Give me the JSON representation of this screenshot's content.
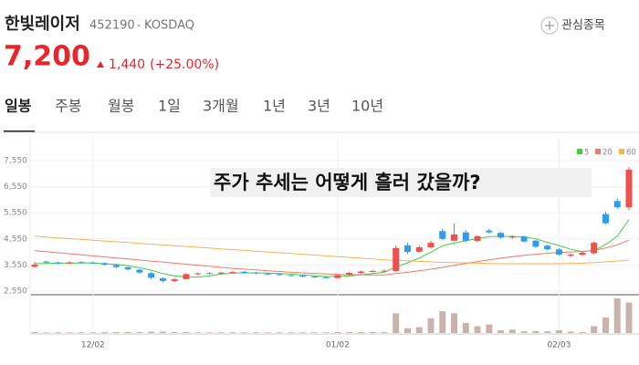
{
  "header": {
    "name": "한빛레이저",
    "code": "452190",
    "market": "KOSDAQ",
    "watch_button": "관심종목",
    "price": "7,200",
    "change": "1,440",
    "change_pct": "(+25.00%)"
  },
  "tabs": [
    "일봉",
    "주봉",
    "월봉",
    "1일",
    "3개월",
    "1년",
    "3년",
    "10년"
  ],
  "selected_tab": 0,
  "chart_data": {
    "type": "candlestick",
    "annotation": "주가 추세는 어떻게 흘러 갔을까?",
    "categories": [
      null,
      null,
      null,
      null,
      null,
      "12/02",
      null,
      null,
      null,
      null,
      null,
      null,
      null,
      null,
      null,
      null,
      null,
      null,
      null,
      null,
      null,
      null,
      null,
      null,
      null,
      null,
      "01/02",
      null,
      null,
      null,
      null,
      null,
      null,
      null,
      null,
      null,
      null,
      null,
      null,
      null,
      null,
      null,
      null,
      null,
      null,
      "02/03",
      null,
      null,
      null,
      null,
      null,
      null
    ],
    "open": [
      3480,
      3680,
      3650,
      3610,
      3660,
      3640,
      3620,
      3550,
      3460,
      3370,
      3240,
      3040,
      2930,
      3010,
      3200,
      3240,
      3220,
      3250,
      3290,
      3260,
      3220,
      3200,
      3160,
      3140,
      3110,
      3080,
      3050,
      3170,
      3240,
      3300,
      3310,
      3320,
      4300,
      4060,
      4230,
      4850,
      4480,
      4800,
      4470,
      4870,
      4780,
      4600,
      4640,
      4480,
      4290,
      4150,
      3900,
      3940,
      4000,
      5500,
      6000,
      5760
    ],
    "high": [
      3660,
      3720,
      3680,
      3690,
      3700,
      3680,
      3650,
      3580,
      3500,
      3400,
      3280,
      3080,
      3050,
      3240,
      3260,
      3280,
      3290,
      3310,
      3320,
      3290,
      3250,
      3230,
      3190,
      3170,
      3140,
      3110,
      3200,
      3290,
      3340,
      3360,
      3380,
      4300,
      4400,
      4300,
      4480,
      4950,
      5150,
      4880,
      4700,
      4950,
      4820,
      4700,
      4680,
      4520,
      4330,
      4200,
      3990,
      4080,
      4450,
      5600,
      6100,
      7300
    ],
    "low": [
      3440,
      3600,
      3570,
      3580,
      3600,
      3590,
      3520,
      3430,
      3340,
      3220,
      3010,
      2880,
      2890,
      2980,
      3170,
      3190,
      3190,
      3220,
      3220,
      3200,
      3170,
      3140,
      3120,
      3070,
      3050,
      3030,
      3020,
      3140,
      3210,
      3270,
      3290,
      3280,
      3980,
      4020,
      4180,
      4500,
      4450,
      4430,
      4420,
      4760,
      4560,
      4560,
      4420,
      4210,
      4100,
      3900,
      3850,
      3900,
      3960,
      5100,
      5700,
      5650
    ],
    "close": [
      3560,
      3640,
      3610,
      3650,
      3630,
      3620,
      3560,
      3470,
      3380,
      3260,
      3060,
      2940,
      3000,
      3200,
      3230,
      3220,
      3260,
      3280,
      3250,
      3230,
      3200,
      3170,
      3150,
      3100,
      3080,
      3060,
      3160,
      3250,
      3300,
      3320,
      3330,
      4200,
      4050,
      4230,
      4400,
      4550,
      4720,
      4480,
      4650,
      4800,
      4600,
      4650,
      4450,
      4250,
      4150,
      3950,
      3950,
      4020,
      4400,
      5150,
      5760,
      7200
    ],
    "volume": [
      3,
      2,
      2,
      2,
      2,
      2,
      3,
      3,
      3,
      3,
      4,
      4,
      3,
      3,
      2,
      2,
      2,
      2,
      2,
      2,
      2,
      2,
      2,
      2,
      2,
      2,
      3,
      3,
      3,
      3,
      3,
      57,
      14,
      17,
      43,
      63,
      57,
      29,
      20,
      25,
      8,
      10,
      5,
      6,
      5,
      8,
      4,
      3,
      20,
      45,
      100,
      88
    ],
    "up_color": "#f04f4f",
    "down_color": "#2e9cf2",
    "volume_color": "#c8b4ac",
    "moving_averages": [
      {
        "name": "5",
        "color": "#3fcf3f",
        "values": [
          3600,
          3610,
          3620,
          3620,
          3630,
          3630,
          3600,
          3570,
          3520,
          3450,
          3350,
          3220,
          3130,
          3090,
          3090,
          3130,
          3200,
          3240,
          3250,
          3250,
          3240,
          3220,
          3200,
          3170,
          3140,
          3110,
          3110,
          3130,
          3170,
          3220,
          3270,
          3480,
          3630,
          3820,
          4040,
          4290,
          4390,
          4480,
          4560,
          4640,
          4650,
          4640,
          4630,
          4550,
          4420,
          4300,
          4150,
          4060,
          4110,
          4330,
          4650,
          5290
        ]
      },
      {
        "name": "20",
        "color": "#f07a6a",
        "values": [
          4100,
          4060,
          4020,
          3980,
          3940,
          3900,
          3860,
          3820,
          3780,
          3740,
          3700,
          3660,
          3620,
          3580,
          3540,
          3500,
          3460,
          3420,
          3390,
          3360,
          3330,
          3300,
          3270,
          3250,
          3230,
          3210,
          3190,
          3180,
          3170,
          3170,
          3170,
          3220,
          3270,
          3330,
          3390,
          3460,
          3540,
          3610,
          3680,
          3750,
          3810,
          3870,
          3920,
          3960,
          4000,
          4030,
          4050,
          4070,
          4110,
          4200,
          4320,
          4500
        ]
      },
      {
        "name": "60",
        "color": "#f5b453",
        "values": [
          4650,
          4620,
          4590,
          4560,
          4530,
          4500,
          4470,
          4440,
          4410,
          4380,
          4350,
          4320,
          4290,
          4260,
          4230,
          4200,
          4170,
          4140,
          4110,
          4080,
          4050,
          4020,
          3990,
          3960,
          3930,
          3900,
          3870,
          3840,
          3810,
          3780,
          3750,
          3730,
          3710,
          3690,
          3670,
          3650,
          3640,
          3630,
          3620,
          3610,
          3600,
          3600,
          3600,
          3600,
          3600,
          3600,
          3610,
          3620,
          3640,
          3670,
          3700,
          3740
        ]
      }
    ],
    "ylim": [
      2410,
      7935
    ],
    "yticks": [
      {
        "value": 7550,
        "label": "7,550"
      },
      {
        "value": 6550,
        "label": "6,550"
      },
      {
        "value": 5550,
        "label": "5,550"
      },
      {
        "value": 4550,
        "label": "4,550"
      },
      {
        "value": 3550,
        "label": "3,550"
      },
      {
        "value": 2550,
        "label": "2,550"
      }
    ],
    "grid": true
  }
}
